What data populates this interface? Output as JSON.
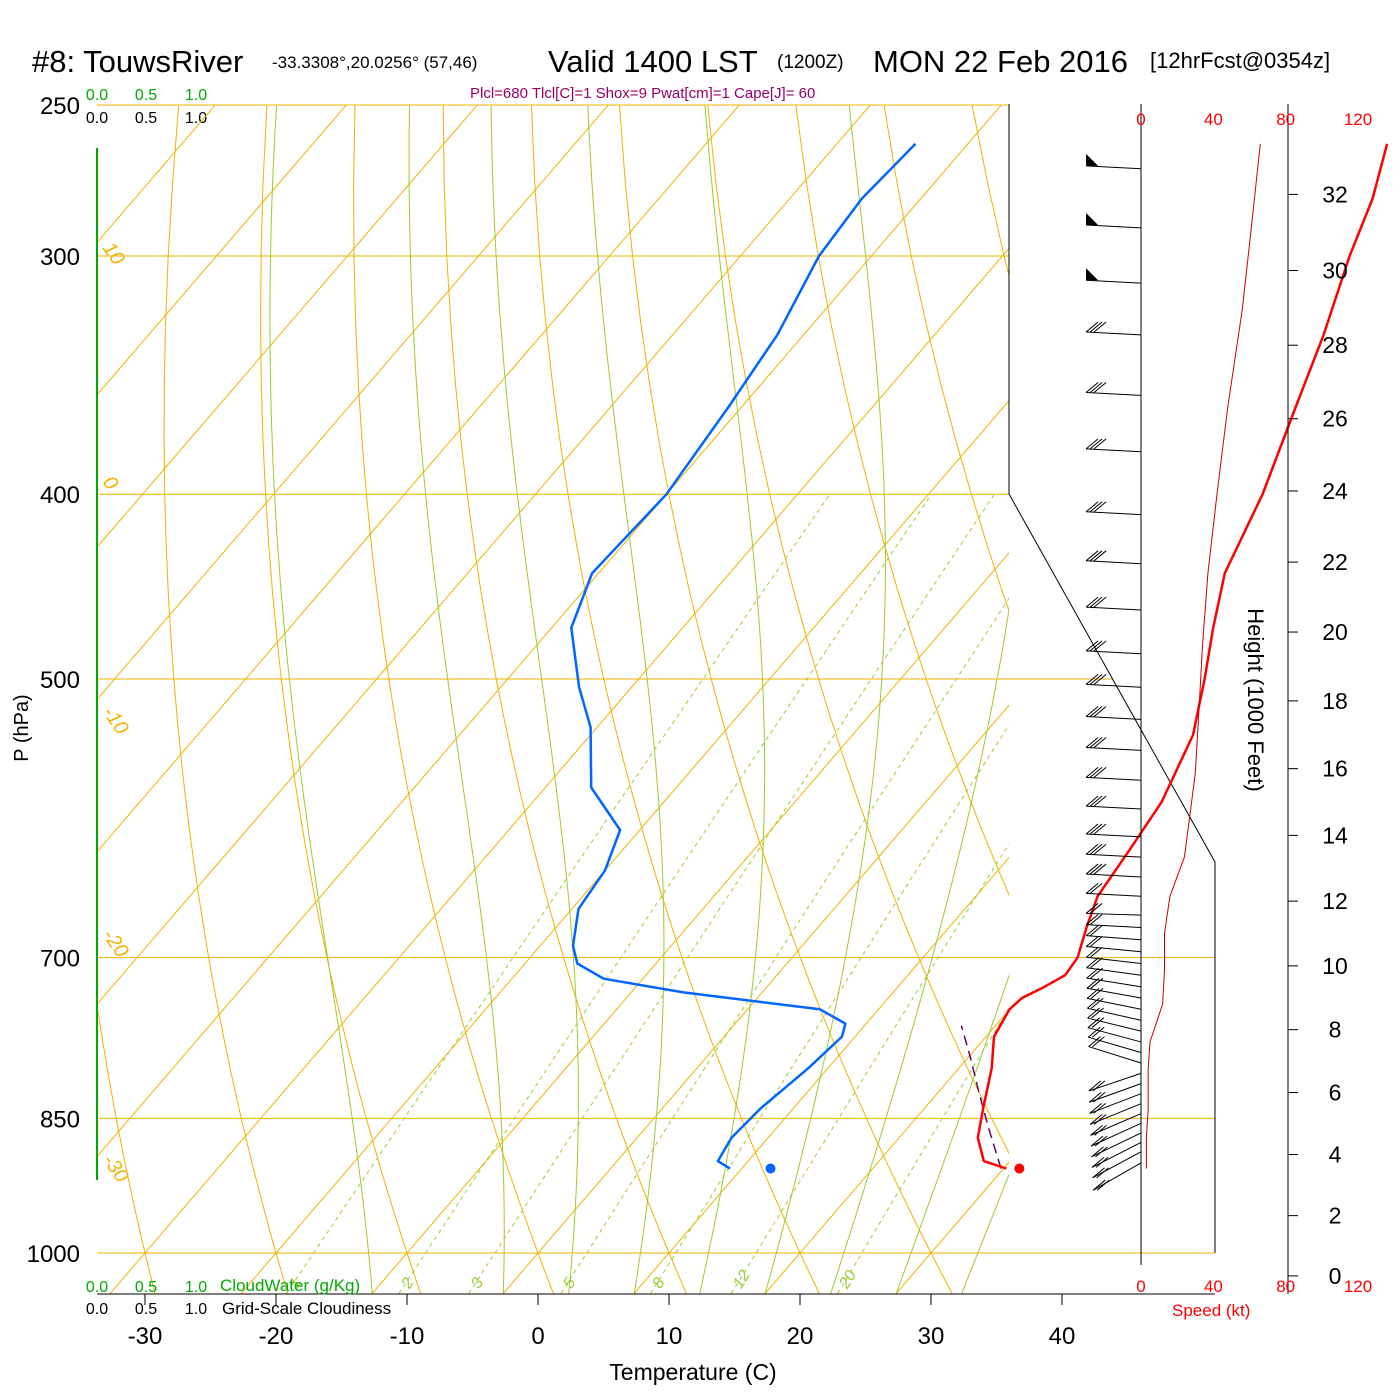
{
  "header": {
    "station": "#8: TouwsRiver",
    "coords": "-33.3308°,20.0256° (57,46)",
    "valid": "Valid 1400 LST",
    "zulu": "(1200Z)",
    "date": "MON 22 Feb 2016",
    "forecast": "[12hrFcst@0354z]",
    "indices": "Plcl=680 Tlcl[C]=1 Shox=9 Pwat[cm]=1 Cape[J]= 60"
  },
  "colors": {
    "isotherm": "#f2b200",
    "mixing": "#99cc33",
    "temperature": "#ff0000",
    "dewpoint": "#0066ff",
    "parcel": "#660066",
    "cloud": "#00aa00",
    "title_red": "#ff0000",
    "indices": "#990066"
  },
  "cloud_scale": {
    "ticks": [
      "0.0",
      "0.5",
      "1.0"
    ],
    "cloudwater_label": "CloudWater (g/Kg)",
    "cloudiness_label": "Grid-Scale Cloudiness"
  },
  "chart_data": {
    "type": "skew-t",
    "xlabel": "Temperature (C)",
    "ylabel": "P (hPa)",
    "x_ticks": [
      "-30",
      "-20",
      "-10",
      "0",
      "10",
      "20",
      "30",
      "40"
    ],
    "p_ticks": [
      "250",
      "300",
      "400",
      "500",
      "700",
      "850",
      "1000"
    ],
    "p_values": [
      250,
      300,
      400,
      500,
      700,
      850,
      1000
    ],
    "xlim": [
      -34,
      36
    ],
    "ylim_hpa": [
      1050,
      250
    ],
    "isotherm_labels": [
      "10",
      "0",
      "-10",
      "-20",
      "-30",
      "0",
      "10",
      "20",
      "30"
    ],
    "mixing_ratio_labels": [
      "1",
      "2",
      "3",
      "5",
      "8",
      "12",
      "20"
    ],
    "temperature_profile": [
      {
        "p": 903,
        "t": 30.2
      },
      {
        "p": 895,
        "t": 28.0
      },
      {
        "p": 870,
        "t": 26.0
      },
      {
        "p": 840,
        "t": 24.5
      },
      {
        "p": 800,
        "t": 22.5
      },
      {
        "p": 770,
        "t": 20.6
      },
      {
        "p": 745,
        "t": 20.0
      },
      {
        "p": 735,
        "t": 20.2
      },
      {
        "p": 725,
        "t": 21.2
      },
      {
        "p": 715,
        "t": 22.0
      },
      {
        "p": 700,
        "t": 21.8
      },
      {
        "p": 675,
        "t": 20.5
      },
      {
        "p": 650,
        "t": 19.3
      },
      {
        "p": 615,
        "t": 18.7
      },
      {
        "p": 580,
        "t": 18.0
      },
      {
        "p": 535,
        "t": 16.0
      },
      {
        "p": 500,
        "t": 13.2
      },
      {
        "p": 470,
        "t": 10.5
      },
      {
        "p": 440,
        "t": 7.8
      },
      {
        "p": 400,
        "t": 5.5
      },
      {
        "p": 360,
        "t": 2.3
      },
      {
        "p": 330,
        "t": -0.3
      },
      {
        "p": 300,
        "t": -3.5
      },
      {
        "p": 280,
        "t": -5.5
      },
      {
        "p": 262,
        "t": -8.0
      }
    ],
    "dewpoint_profile": [
      {
        "p": 903,
        "t": 9.1
      },
      {
        "p": 895,
        "t": 7.7
      },
      {
        "p": 870,
        "t": 7.2
      },
      {
        "p": 840,
        "t": 7.5
      },
      {
        "p": 800,
        "t": 8.5
      },
      {
        "p": 770,
        "t": 9.0
      },
      {
        "p": 758,
        "t": 8.4
      },
      {
        "p": 745,
        "t": 5.5
      },
      {
        "p": 730,
        "t": -6.0
      },
      {
        "p": 718,
        "t": -13.0
      },
      {
        "p": 705,
        "t": -16.0
      },
      {
        "p": 690,
        "t": -17.5
      },
      {
        "p": 660,
        "t": -19.5
      },
      {
        "p": 630,
        "t": -20.0
      },
      {
        "p": 600,
        "t": -21.5
      },
      {
        "p": 570,
        "t": -26.5
      },
      {
        "p": 530,
        "t": -30.5
      },
      {
        "p": 505,
        "t": -34.0
      },
      {
        "p": 470,
        "t": -38.5
      },
      {
        "p": 440,
        "t": -40.5
      },
      {
        "p": 400,
        "t": -40.0
      },
      {
        "p": 360,
        "t": -41.0
      },
      {
        "p": 330,
        "t": -42.0
      },
      {
        "p": 300,
        "t": -44.0
      },
      {
        "p": 280,
        "t": -44.5
      },
      {
        "p": 262,
        "t": -44.0
      }
    ],
    "parcel_profile": [
      {
        "p": 903,
        "t": 29.8
      },
      {
        "p": 860,
        "t": 26.2
      },
      {
        "p": 820,
        "t": 22.8
      },
      {
        "p": 790,
        "t": 20.2
      },
      {
        "p": 760,
        "t": 17.4
      }
    ],
    "surface_temperature": {
      "p": 903,
      "t": 31.2
    },
    "surface_dewpoint": {
      "p": 903,
      "t": 12.2
    },
    "wind_speed_axis": {
      "label": "Speed (kt)",
      "ticks": [
        "0",
        "40",
        "80",
        "120"
      ],
      "xlim": [
        0,
        120
      ]
    },
    "height_axis": {
      "label": "Height (1000 Feet)",
      "ticks": [
        "0",
        "2",
        "4",
        "6",
        "8",
        "10",
        "12",
        "14",
        "16",
        "18",
        "20",
        "22",
        "24",
        "26",
        "28",
        "30",
        "32"
      ]
    },
    "wind_speed_profile": [
      {
        "p": 1000,
        "kt": null
      },
      {
        "p": 903,
        "kt": 3
      },
      {
        "p": 870,
        "kt": 3
      },
      {
        "p": 840,
        "kt": 4
      },
      {
        "p": 800,
        "kt": 4
      },
      {
        "p": 775,
        "kt": 5
      },
      {
        "p": 760,
        "kt": 8
      },
      {
        "p": 740,
        "kt": 12
      },
      {
        "p": 710,
        "kt": 13
      },
      {
        "p": 680,
        "kt": 13
      },
      {
        "p": 650,
        "kt": 16
      },
      {
        "p": 620,
        "kt": 24
      },
      {
        "p": 590,
        "kt": 27
      },
      {
        "p": 560,
        "kt": 30
      },
      {
        "p": 520,
        "kt": 32
      },
      {
        "p": 480,
        "kt": 34
      },
      {
        "p": 440,
        "kt": 37
      },
      {
        "p": 400,
        "kt": 42
      },
      {
        "p": 360,
        "kt": 48
      },
      {
        "p": 320,
        "kt": 56
      },
      {
        "p": 290,
        "kt": 61
      },
      {
        "p": 262,
        "kt": 66
      }
    ],
    "wind_barb_pressures": [
      897,
      885,
      875,
      865,
      855,
      845,
      835,
      825,
      815,
      805,
      795,
      785,
      775,
      765,
      755,
      745,
      735,
      725,
      715,
      705,
      695,
      685,
      675,
      665,
      650,
      635,
      620,
      605,
      585,
      565,
      545,
      525,
      505,
      485,
      460,
      435,
      410,
      380,
      355,
      330,
      310,
      290,
      270
    ]
  }
}
